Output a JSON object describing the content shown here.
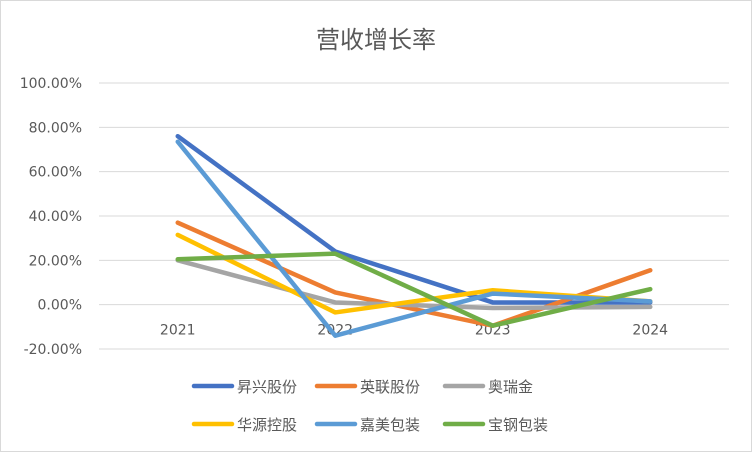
{
  "chart_data": {
    "type": "line",
    "title": "营收增长率",
    "xlabel": "",
    "ylabel": "",
    "categories": [
      "2021",
      "2022",
      "2023",
      "2024"
    ],
    "y_ticks": [
      "-20.00%",
      "0.00%",
      "20.00%",
      "40.00%",
      "60.00%",
      "80.00%",
      "100.00%"
    ],
    "ylim": [
      -20,
      100
    ],
    "y_unit": "%",
    "grid": true,
    "legend_position": "bottom",
    "series": [
      {
        "name": "昇兴股份",
        "color": "#4472C4",
        "values": [
          76,
          24,
          1,
          1
        ]
      },
      {
        "name": "英联股份",
        "color": "#ED7D31",
        "values": [
          37,
          5.5,
          -9.5,
          15.5
        ]
      },
      {
        "name": "奥瑞金",
        "color": "#A5A5A5",
        "values": [
          20,
          1,
          -1.5,
          -1
        ]
      },
      {
        "name": "华源控股",
        "color": "#FFC000",
        "values": [
          31.5,
          -3.5,
          6.5,
          1.5
        ]
      },
      {
        "name": "嘉美包装",
        "color": "#5B9BD5",
        "values": [
          73.5,
          -14,
          5,
          1.5
        ]
      },
      {
        "name": "宝钢包装",
        "color": "#70AD47",
        "values": [
          20.5,
          23,
          -9.5,
          7
        ]
      }
    ]
  }
}
